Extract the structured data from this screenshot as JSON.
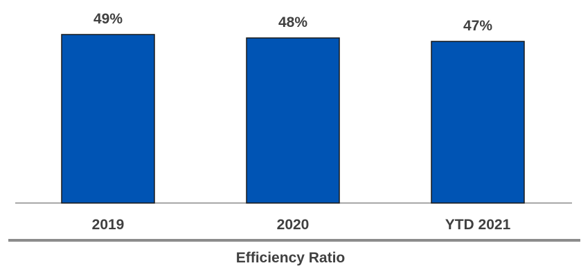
{
  "chart_data": {
    "type": "bar",
    "title": "Efficiency Ratio",
    "categories": [
      "2019",
      "2020",
      "YTD 2021"
    ],
    "values": [
      49,
      48,
      47
    ],
    "value_labels": [
      "49%",
      "48%",
      "47%"
    ],
    "ylim": [
      0,
      50
    ],
    "xlabel": "",
    "ylabel": "",
    "grid": false,
    "legend": "none",
    "bar_color": "#0054b4",
    "bar_border_color": "#1a1a1a",
    "text_color": "#404040",
    "axis_color": "#8c8c8c"
  }
}
